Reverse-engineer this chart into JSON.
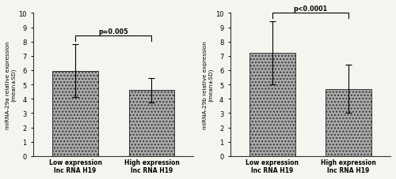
{
  "left": {
    "ylabel": "miRNA-29a relative expression\n(mean±SD)",
    "categories": [
      "Low expression\nlnc RNA H19",
      "High expression\nlnc RNA H19"
    ],
    "values": [
      5.95,
      4.6
    ],
    "errors": [
      1.85,
      0.85
    ],
    "pvalue": "p=0.005",
    "ylim": [
      0,
      10
    ],
    "yticks": [
      0,
      1,
      2,
      3,
      4,
      5,
      6,
      7,
      8,
      9,
      10
    ]
  },
  "right": {
    "ylabel": "miRNA-29b relative expression\n(mean±SD)",
    "categories": [
      "Low expression\nlnc RNA H19",
      "High expression\nlnc RNA H19"
    ],
    "values": [
      7.2,
      4.7
    ],
    "errors": [
      2.2,
      1.7
    ],
    "pvalue": "p<0.0001",
    "ylim": [
      0,
      10
    ],
    "yticks": [
      0,
      1,
      2,
      3,
      4,
      5,
      6,
      7,
      8,
      9,
      10
    ]
  },
  "bar_color": "#aaaaaa",
  "hatch": "....",
  "edgecolor": "#333333",
  "background_color": "#f5f5f0",
  "bar_width": 0.6,
  "capsize": 3
}
